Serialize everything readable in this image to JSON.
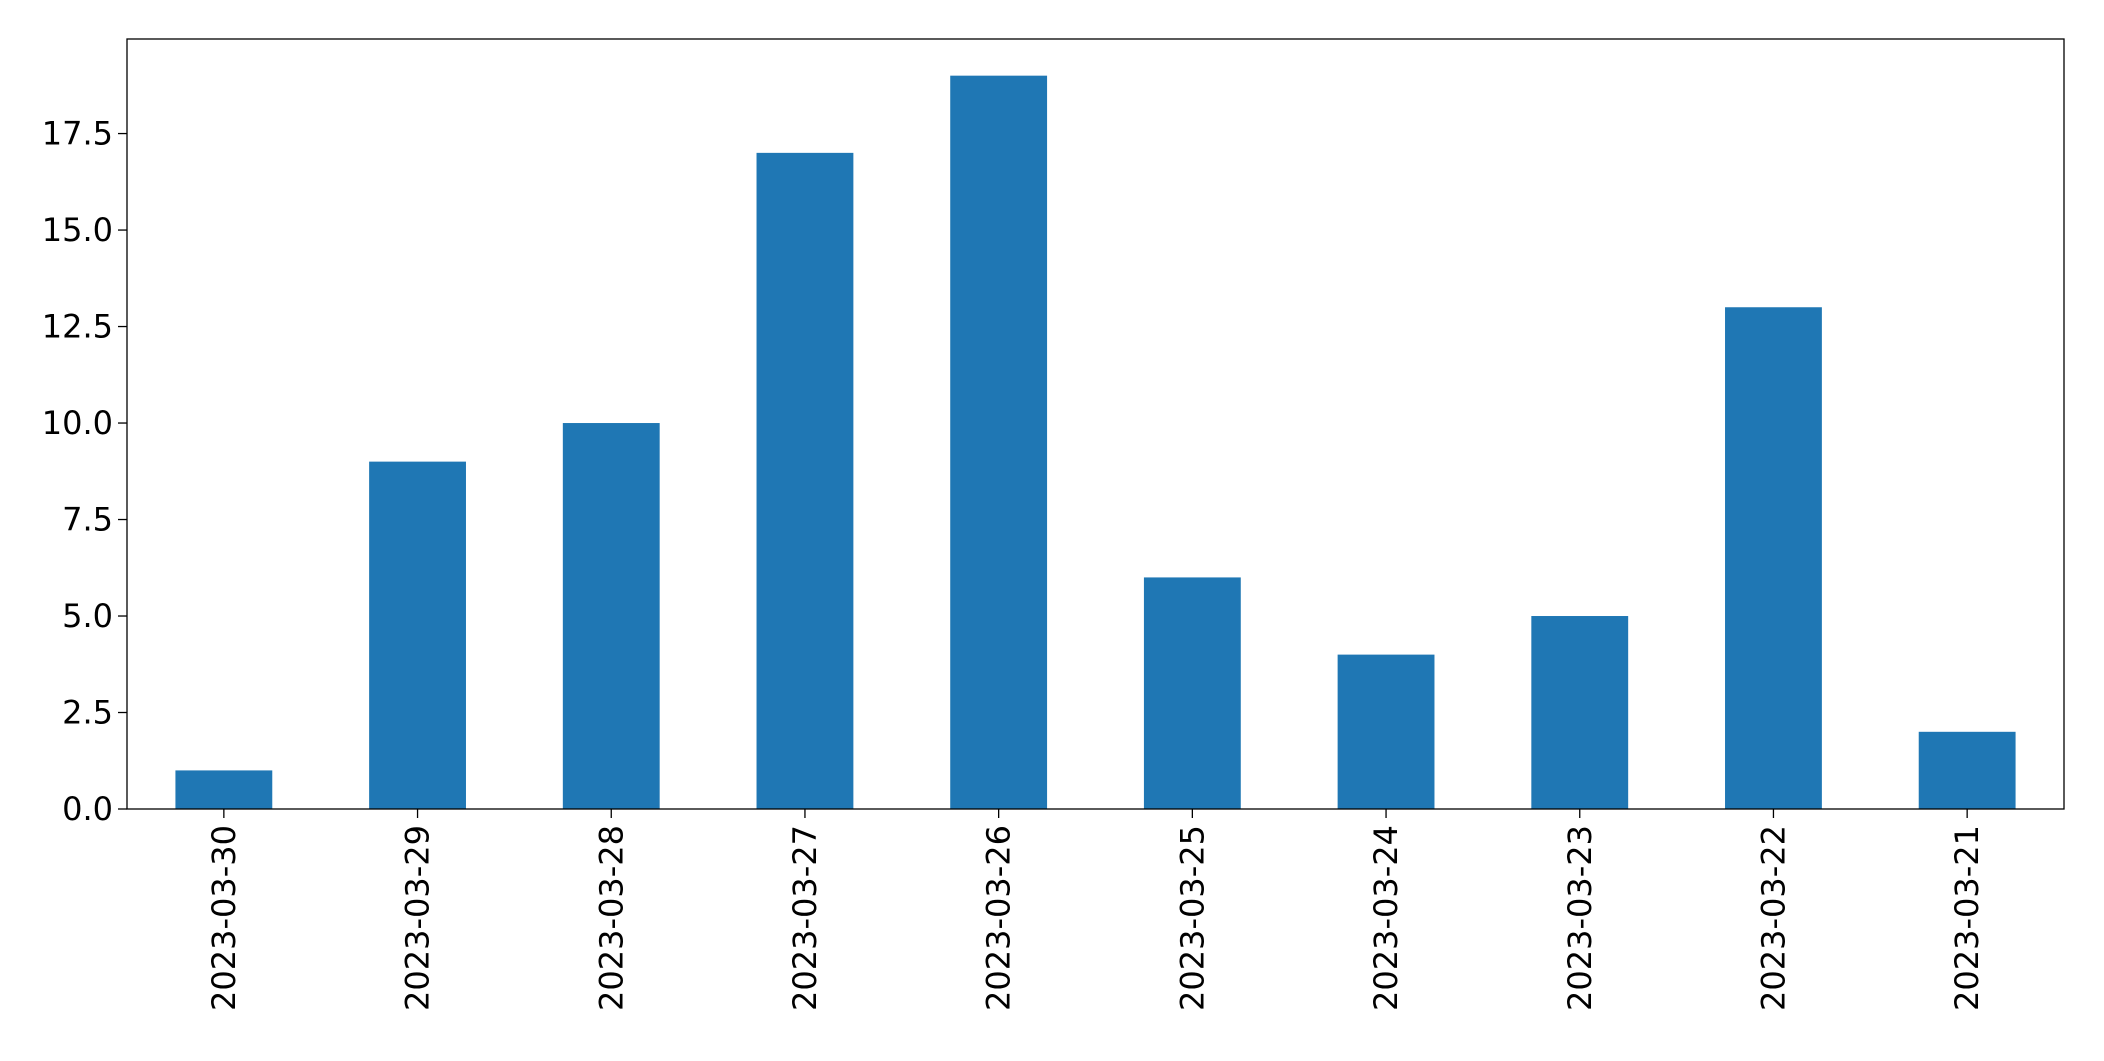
{
  "chart_data": {
    "type": "bar",
    "categories": [
      "2023-03-30",
      "2023-03-29",
      "2023-03-28",
      "2023-03-27",
      "2023-03-26",
      "2023-03-25",
      "2023-03-24",
      "2023-03-23",
      "2023-03-22",
      "2023-03-21"
    ],
    "values": [
      1,
      9,
      10,
      17,
      19,
      6,
      4,
      5,
      13,
      2
    ],
    "color": "#1f77b4",
    "ylim": [
      0,
      19.95
    ],
    "yticks": [
      {
        "value": 0,
        "label": "0.0"
      },
      2.5,
      {
        "value": 5,
        "label": "5.0"
      },
      7.5,
      {
        "value": 10,
        "label": "10.0"
      },
      12.5,
      {
        "value": 15,
        "label": "15.0"
      },
      17.5
    ],
    "grid": false
  }
}
